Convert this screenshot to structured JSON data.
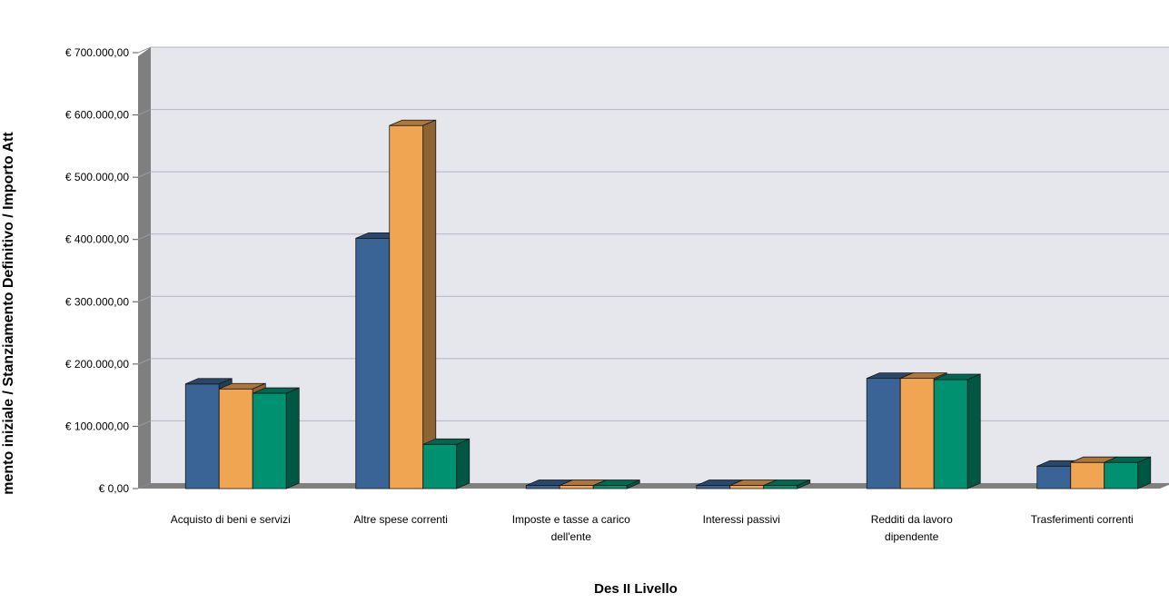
{
  "chart_data": {
    "type": "bar",
    "style": "3d-clustered",
    "categories": [
      "Acquisto di beni e servizi",
      "Altre spese correnti",
      "Imposte e tasse a carico dell'ente",
      "Interessi passivi",
      "Redditi da lavoro dipendente",
      "Trasferimenti correnti"
    ],
    "series": [
      {
        "color": "#3a6496",
        "values": [
          168000,
          402000,
          5000,
          5000,
          177000,
          36000
        ]
      },
      {
        "color": "#f0a553",
        "values": [
          160000,
          583000,
          5000,
          5000,
          177000,
          42000
        ]
      },
      {
        "color": "#009170",
        "values": [
          153000,
          71000,
          5000,
          5000,
          175000,
          42000
        ]
      }
    ],
    "xlabel": "Des II Livello",
    "ylabel": "mento iniziale / Stanziamento Definitivo / Importo Att",
    "ylim": [
      0,
      700000
    ],
    "yticks": [
      "€ 0,00",
      "€ 100.000,00",
      "€ 200.000,00",
      "€ 300.000,00",
      "€ 400.000,00",
      "€ 500.000,00",
      "€ 600.000,00",
      "€ 700.000,00"
    ],
    "grid": true,
    "legend": "none"
  }
}
